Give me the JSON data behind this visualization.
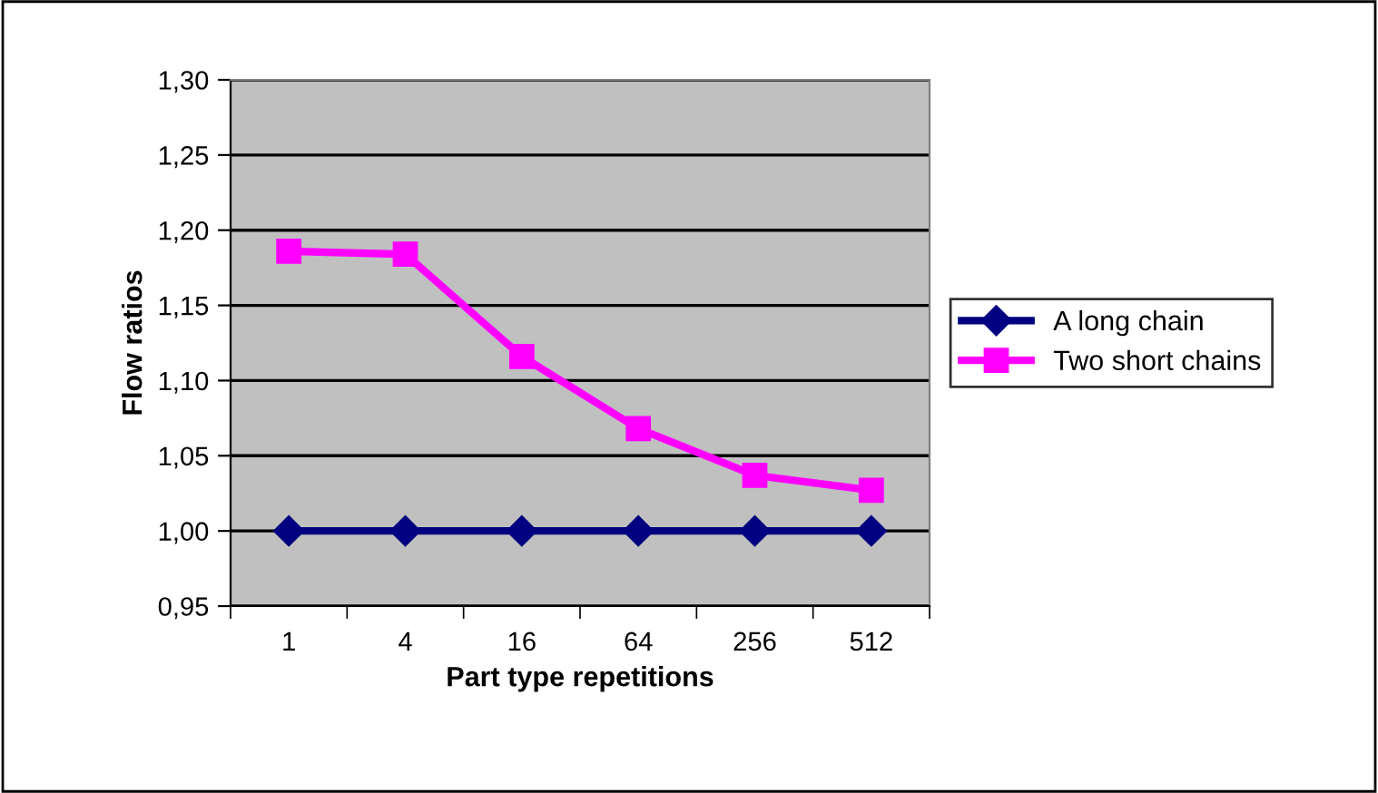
{
  "chart_data": {
    "type": "line",
    "xlabel": "Part type repetitions",
    "ylabel": "Flow ratios",
    "categories": [
      "1",
      "4",
      "16",
      "64",
      "256",
      "512"
    ],
    "series": [
      {
        "name": "A long chain",
        "color": "#000080",
        "values": [
          1.0,
          1.0,
          1.0,
          1.0,
          1.0,
          1.0
        ],
        "marker": "diamond"
      },
      {
        "name": "Two short chains",
        "color": "#ff00ff",
        "values": [
          1.186,
          1.184,
          1.116,
          1.068,
          1.037,
          1.027
        ],
        "marker": "square"
      }
    ],
    "ylim": [
      0.95,
      1.3
    ],
    "yticks": [
      {
        "value": 0.95,
        "label": "0,95"
      },
      {
        "value": 1.0,
        "label": "1,00"
      },
      {
        "value": 1.05,
        "label": "1,05"
      },
      {
        "value": 1.1,
        "label": "1,10"
      },
      {
        "value": 1.15,
        "label": "1,15"
      },
      {
        "value": 1.2,
        "label": "1,20"
      },
      {
        "value": 1.25,
        "label": "1,25"
      },
      {
        "value": 1.3,
        "label": "1,30"
      }
    ],
    "grid": "y",
    "legend": "right",
    "line_style": "solid"
  }
}
